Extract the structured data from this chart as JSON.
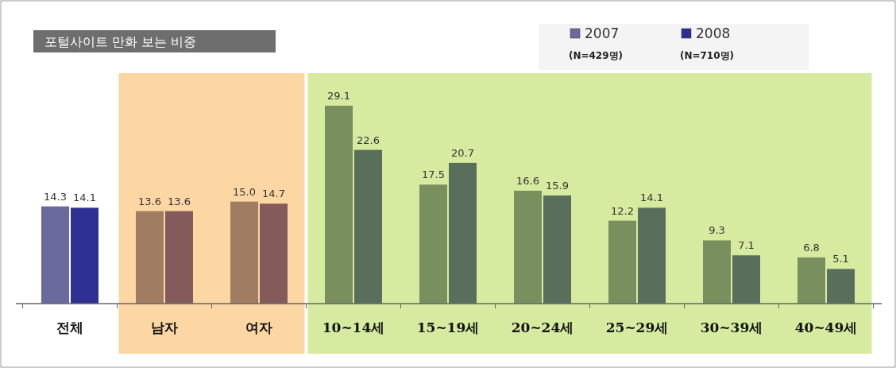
{
  "chart_data": {
    "type": "bar",
    "title": "포털사이트 만화 보는 비중",
    "categories": [
      "전체",
      "남자",
      "여자",
      "10~14세",
      "15~19세",
      "20~24세",
      "25~29세",
      "30~39세",
      "40~49세"
    ],
    "series": [
      {
        "name": "2007",
        "color": "#6a6a9e",
        "colors": [
          "#6a6a9e",
          "#a07c62",
          "#a07c62",
          "#7a8f5e",
          "#7a8f5e",
          "#7a8f5e",
          "#7a8f5e",
          "#7a8f5e",
          "#7a8f5e"
        ],
        "values": [
          14.3,
          13.6,
          15.0,
          29.1,
          17.5,
          16.6,
          12.2,
          9.3,
          6.8
        ],
        "value_labels": [
          "14.3",
          "13.6",
          "15.0",
          "29.1",
          "17.5",
          "16.6",
          "12.2",
          "9.3",
          "6.8"
        ]
      },
      {
        "name": "2008",
        "color": "#2e3192",
        "colors": [
          "#2e3192",
          "#845a5a",
          "#845a5a",
          "#5a6e5c",
          "#5a6e5c",
          "#5a6e5c",
          "#5a6e5c",
          "#5a6e5c",
          "#5a6e5c"
        ],
        "values": [
          14.1,
          13.6,
          14.7,
          22.6,
          20.7,
          15.9,
          14.1,
          7.1,
          5.1
        ]
      }
    ],
    "annotations": [
      "(N=429명)",
      "(N=710명)"
    ],
    "bands": [
      {
        "axis": "x",
        "from": "남자",
        "to": "여자",
        "color": "#fcd7a4"
      },
      {
        "axis": "x",
        "from": "10~14세",
        "to": "40~49세",
        "color": "#d6eba0"
      }
    ],
    "data_labels": true,
    "legend": "top right"
  }
}
